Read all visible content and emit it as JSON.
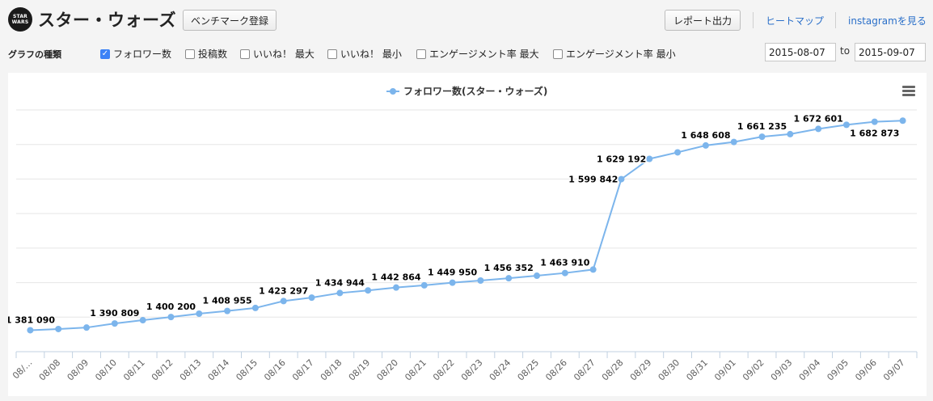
{
  "header": {
    "logo_text": "STAR WARS",
    "title": "スター・ウォーズ",
    "benchmark_label": "ベンチマーク登録",
    "report_label": "レポート出力",
    "heatmap_label": "ヒートマップ",
    "instagram_label": "instagramを見る"
  },
  "filters": {
    "label": "グラフの種類",
    "options": [
      {
        "label": "フォロワー数",
        "checked": true
      },
      {
        "label": "投稿数",
        "checked": false
      },
      {
        "label": "いいね！ 最大",
        "checked": false
      },
      {
        "label": "いいね！ 最小",
        "checked": false
      },
      {
        "label": "エンゲージメント率 最大",
        "checked": false
      },
      {
        "label": "エンゲージメント率 最小",
        "checked": false
      }
    ],
    "date_from": "2015-08-07",
    "to_label": "to",
    "date_to": "2015-09-07"
  },
  "colors": {
    "series": "#7cb5ec",
    "link": "#2a6fc9",
    "checkbox": "#3b82f6"
  },
  "chart_data": {
    "type": "line",
    "legend": "フォロワー数(スター・ウォーズ)",
    "legend_position": "top-center",
    "grid": true,
    "x": [
      "08/…",
      "08/08",
      "08/09",
      "08/10",
      "08/11",
      "08/12",
      "08/13",
      "08/14",
      "08/15",
      "08/16",
      "08/17",
      "08/18",
      "08/19",
      "08/20",
      "08/21",
      "08/22",
      "08/23",
      "08/24",
      "08/25",
      "08/26",
      "08/27",
      "08/28",
      "08/29",
      "08/30",
      "08/31",
      "09/01",
      "09/02",
      "09/03",
      "09/04",
      "09/05",
      "09/06",
      "09/07"
    ],
    "series": [
      {
        "name": "フォロワー数(スター・ウォーズ)",
        "values": [
          1381090,
          1382800,
          1384900,
          1390809,
          1395600,
          1400200,
          1405000,
          1408955,
          1413300,
          1423297,
          1428300,
          1434944,
          1438700,
          1442864,
          1446100,
          1449950,
          1453000,
          1456352,
          1460000,
          1463910,
          1468900,
          1599842,
          1629192,
          1638600,
          1648608,
          1653600,
          1661235,
          1665000,
          1672601,
          1678500,
          1682873,
          1684500
        ]
      }
    ],
    "data_labels": [
      {
        "index": 0,
        "text": "1 381 090",
        "pos": "above"
      },
      {
        "index": 3,
        "text": "1 390 809",
        "pos": "above"
      },
      {
        "index": 5,
        "text": "1 400 200",
        "pos": "above"
      },
      {
        "index": 7,
        "text": "1 408 955",
        "pos": "above"
      },
      {
        "index": 9,
        "text": "1 423 297",
        "pos": "above"
      },
      {
        "index": 11,
        "text": "1 434 944",
        "pos": "above"
      },
      {
        "index": 13,
        "text": "1 442 864",
        "pos": "above"
      },
      {
        "index": 15,
        "text": "1 449 950",
        "pos": "above"
      },
      {
        "index": 17,
        "text": "1 456 352",
        "pos": "above"
      },
      {
        "index": 19,
        "text": "1 463 910",
        "pos": "above"
      },
      {
        "index": 21,
        "text": "1 599 842",
        "pos": "left"
      },
      {
        "index": 22,
        "text": "1 629 192",
        "pos": "left"
      },
      {
        "index": 24,
        "text": "1 648 608",
        "pos": "above"
      },
      {
        "index": 26,
        "text": "1 661 235",
        "pos": "above"
      },
      {
        "index": 28,
        "text": "1 672 601",
        "pos": "above"
      },
      {
        "index": 30,
        "text": "1 682 873",
        "pos": "below"
      }
    ],
    "ylim": [
      1350000,
      1700000
    ]
  }
}
